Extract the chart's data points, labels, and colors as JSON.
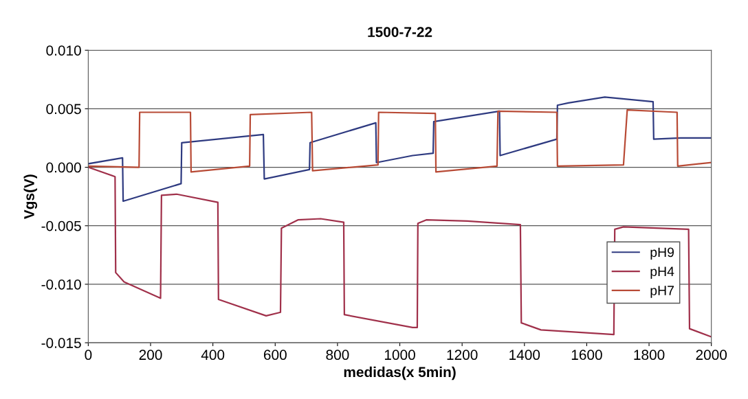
{
  "chart_data": {
    "type": "line",
    "title": "1500-7-22",
    "xlabel": "medidas(x 5min)",
    "ylabel": "Vgs(V)",
    "xlim": [
      0,
      2000
    ],
    "xticks": [
      0,
      200,
      400,
      600,
      800,
      1000,
      1200,
      1400,
      1600,
      1800,
      2000
    ],
    "ylim": [
      -0.015,
      0.01
    ],
    "yticks": [
      {
        "value": 0.01,
        "label": "0.010"
      },
      {
        "value": 0.005,
        "label": "0.005"
      },
      {
        "value": 0,
        "label": "0.000"
      },
      {
        "value": -0.005,
        "label": "-0.005"
      },
      {
        "value": -0.01,
        "label": "-0.010"
      },
      {
        "value": -0.015,
        "label": "-0.015"
      }
    ],
    "grid": "y",
    "legend": "right",
    "line_style": "solid",
    "marker": "none",
    "series": [
      {
        "name": "pH9",
        "color": "#2e3a80",
        "x": [
          0,
          110,
          112,
          298,
          300,
          562,
          565,
          710,
          712,
          923,
          925,
          1041,
          1107,
          1109,
          1320,
          1322,
          1504,
          1506,
          1541,
          1658,
          1813,
          1815,
          1901,
          2000
        ],
        "values": [
          0.0003,
          0.0008,
          -0.0029,
          -0.0014,
          0.0021,
          0.0028,
          -0.001,
          -0.0002,
          0.0021,
          0.0038,
          0.0004,
          0.001,
          0.0012,
          0.0039,
          0.0048,
          0.001,
          0.0024,
          0.0053,
          0.0055,
          0.006,
          0.0056,
          0.0024,
          0.0025,
          0.0025
        ]
      },
      {
        "name": "pH4",
        "color": "#a0304a",
        "x": [
          0,
          86,
          88,
          115,
          232,
          235,
          284,
          416,
          418,
          571,
          617,
          620,
          673,
          746,
          820,
          822,
          1041,
          1056,
          1058,
          1085,
          1217,
          1387,
          1390,
          1453,
          1687,
          1690,
          1718,
          1927,
          1930,
          2000
        ],
        "values": [
          0,
          -0.0008,
          -0.009,
          -0.0098,
          -0.0112,
          -0.0024,
          -0.0023,
          -0.003,
          -0.0113,
          -0.0127,
          -0.0124,
          -0.0052,
          -0.0045,
          -0.0044,
          -0.0047,
          -0.0126,
          -0.0137,
          -0.0137,
          -0.0048,
          -0.0045,
          -0.0046,
          -0.0049,
          -0.0133,
          -0.0139,
          -0.0143,
          -0.0053,
          -0.0051,
          -0.0053,
          -0.0138,
          -0.0145
        ]
      },
      {
        "name": "pH7",
        "color": "#b84a35",
        "x": [
          0,
          163,
          165,
          328,
          330,
          518,
          520,
          717,
          720,
          930,
          932,
          1114,
          1116,
          1312,
          1315,
          1504,
          1506,
          1718,
          1730,
          1890,
          1892,
          2000
        ],
        "values": [
          0.0001,
          0,
          0.0047,
          0.0047,
          -0.0004,
          0.0001,
          0.0045,
          0.0047,
          -0.0003,
          0.0002,
          0.0047,
          0.0046,
          -0.0004,
          0.0001,
          0.0048,
          0.0047,
          0.0001,
          0.0002,
          0.0049,
          0.0047,
          0.0001,
          0.0004
        ]
      }
    ]
  }
}
